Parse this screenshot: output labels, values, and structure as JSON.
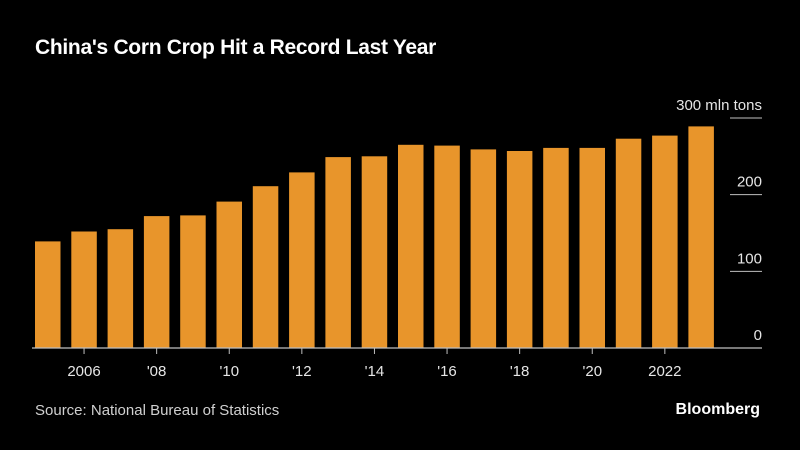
{
  "title": "China's Corn Crop Hit a Record Last Year",
  "source": "Source: National Bureau of Statistics",
  "brand": "Bloomberg",
  "colors": {
    "background": "#000000",
    "bar": "#E8952B",
    "axis": "#bfbfbf",
    "text": "#ffffff"
  },
  "chart_data": {
    "type": "bar",
    "title": "China's Corn Crop Hit a Record Last Year",
    "unit_label": "300 mln tons",
    "categories": [
      2005,
      2006,
      2007,
      2008,
      2009,
      2010,
      2011,
      2012,
      2013,
      2014,
      2015,
      2016,
      2017,
      2018,
      2019,
      2020,
      2021,
      2022,
      2023
    ],
    "values": [
      139,
      152,
      155,
      172,
      173,
      191,
      211,
      229,
      249,
      250,
      265,
      264,
      259,
      257,
      261,
      261,
      273,
      277,
      289
    ],
    "ylim": [
      0,
      300
    ],
    "yticks": [
      {
        "value": 0,
        "label": "0"
      },
      {
        "value": 100,
        "label": "100"
      },
      {
        "value": 200,
        "label": "200"
      },
      {
        "value": 300,
        "label": "300 mln tons"
      }
    ],
    "xticks": [
      {
        "year": 2006,
        "label": "2006"
      },
      {
        "year": 2008,
        "label": "'08"
      },
      {
        "year": 2010,
        "label": "'10"
      },
      {
        "year": 2012,
        "label": "'12"
      },
      {
        "year": 2014,
        "label": "'14"
      },
      {
        "year": 2016,
        "label": "'16"
      },
      {
        "year": 2018,
        "label": "'18"
      },
      {
        "year": 2020,
        "label": "'20"
      },
      {
        "year": 2022,
        "label": "2022"
      }
    ],
    "xlabel": "",
    "ylabel": "",
    "grid": false,
    "axis_side": "right"
  }
}
